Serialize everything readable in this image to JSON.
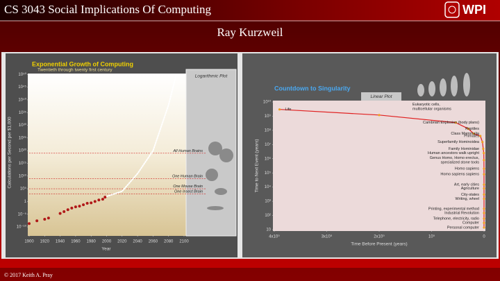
{
  "header": {
    "course": "CS 3043 Social Implications Of Computing",
    "logo": "WPI",
    "title": "Ray Kurzweil",
    "footer": "© 2017 Keith A. Pray"
  },
  "chart_data": [
    {
      "type": "scatter",
      "title": "Exponential Growth of Computing",
      "subtitle": "Twentieth through twenty first century",
      "panel_label": "Logarithmic Plot",
      "x_label": "Year",
      "y_label": "Calculations per Second per $1,000",
      "log_y": true,
      "grid": false,
      "xlim": [
        1900,
        2100
      ],
      "xticks": [
        1900,
        1920,
        1940,
        1960,
        1980,
        2000,
        2020,
        2040,
        2060,
        2080,
        2100
      ],
      "ylim": [
        1e-13,
        1e+52
      ],
      "yticks": [
        {
          "value": 1e+50,
          "label": "10⁵⁰"
        },
        {
          "value": 1e+45,
          "label": "10⁴⁵"
        },
        {
          "value": 1e+40,
          "label": "10⁴⁰"
        },
        {
          "value": 1e+35,
          "label": "10³⁵"
        },
        {
          "value": 1e+30,
          "label": "10³⁰"
        },
        {
          "value": 1e+25,
          "label": "10²⁵"
        },
        {
          "value": 1e+20,
          "label": "10²⁰"
        },
        {
          "value": 1000000000000000.0,
          "label": "10¹⁵"
        },
        {
          "value": 10000000000.0,
          "label": "10¹⁰"
        },
        {
          "value": 100000.0,
          "label": "10⁵"
        },
        1,
        {
          "value": 1e-05,
          "label": "10⁻⁵"
        },
        {
          "value": 1e-10,
          "label": "10⁻¹⁰"
        }
      ],
      "x": [
        1900,
        1910,
        1920,
        1925,
        1940,
        1945,
        1950,
        1955,
        1960,
        1965,
        1970,
        1975,
        1980,
        1985,
        1990,
        1995,
        1998
      ],
      "series": [
        {
          "color": "#b01818",
          "values": [
            2e-09,
            2.5e-08,
            1e-07,
            3e-07,
            2e-05,
            0.0001,
            0.0006,
            0.0025,
            0.008,
            0.015,
            0.05,
            0.2,
            0.3,
            1,
            4,
            8,
            50
          ]
        }
      ],
      "extrapolation": {
        "color": "#ffffff",
        "x": [
          2000,
          2020,
          2040,
          2060,
          2080,
          2090
        ],
        "values": [
          100,
          10000.0,
          100000000000.0,
          1e+20,
          1e+38,
          1e+50
        ]
      },
      "reference_lines": [
        {
          "label": "All Human Brains",
          "value": 1e+19,
          "color": "#d02020"
        },
        {
          "label": "One Human Brain",
          "value": 1000000000.0,
          "color": "#d02020"
        },
        {
          "label": "One Mouse Brain",
          "value": 100000.0,
          "color": "#d02020"
        },
        {
          "label": "One Insect Brain",
          "value": 1000.0,
          "color": "#d02020"
        }
      ]
    },
    {
      "type": "line",
      "title": "Countdown to Singularity",
      "panel_label": "Linear Plot",
      "x_label": "Time Before Present (years)",
      "y_label": "Time to Next Event (years)",
      "log_y": true,
      "grid": false,
      "xlim": [
        4000000000.0,
        0
      ],
      "xticks": [
        {
          "value": 4000000000.0,
          "label": "4x10⁹"
        },
        {
          "value": 3000000000.0,
          "label": "3x10⁹"
        },
        {
          "value": 2000000000.0,
          "label": "2x10⁹"
        },
        {
          "value": 1000000000.0,
          "label": "10⁹"
        },
        0
      ],
      "ylim": [
        10,
        10000000000.0
      ],
      "yticks": [
        {
          "value": 10000000000.0,
          "label": "10¹⁰"
        },
        {
          "value": 1000000000.0,
          "label": "10⁹"
        },
        {
          "value": 100000000.0,
          "label": "10⁸"
        },
        {
          "value": 10000000.0,
          "label": "10⁷"
        },
        {
          "value": 1000000.0,
          "label": "10⁶"
        },
        {
          "value": 100000.0,
          "label": "10⁵"
        },
        {
          "value": 10000.0,
          "label": "10⁴"
        },
        {
          "value": 1000.0,
          "label": "10³"
        },
        {
          "value": 100,
          "label": "10²"
        },
        10
      ],
      "x": [
        3900000000.0,
        2000000000.0,
        540000000.0,
        300000000.0,
        200000000.0,
        70000000.0,
        30000000.0,
        15000000.0,
        4000000.0,
        2000000.0,
        500000.0,
        100000.0,
        25000.0,
        12000.0,
        5000.0,
        4000.0,
        500,
        200,
        100,
        50,
        20
      ],
      "series": [
        {
          "color": "#e02020",
          "marker_color": "#f0a020",
          "values": [
            3000000000.0,
            1200000000.0,
            350000000.0,
            130000000.0,
            60000000.0,
            40000000.0,
            15000000.0,
            5000000.0,
            2500000.0,
            800000.0,
            200000.0,
            80000.0,
            15000.0,
            8000.0,
            3000.0,
            1500.0,
            300,
            150,
            60,
            30,
            14
          ]
        }
      ],
      "point_labels": [
        [
          "Life"
        ],
        [
          "Eukaryotic cells,",
          "multicellular organisms"
        ],
        [
          "Cambrian Explosion (body plans)"
        ],
        [
          "Reptiles"
        ],
        [
          "Class Mammalia"
        ],
        [
          "Primates"
        ],
        [
          "Superfamily Hominoidea"
        ],
        [
          "Family Hominidae"
        ],
        [
          "Human ancestors walk upright"
        ],
        [
          "Genus Homo, Homo erectus,",
          "specialized stone tools"
        ],
        [
          "Homo sapiens"
        ],
        [
          "Homo sapiens sapiens"
        ],
        [
          "Art, early cities"
        ],
        [
          "Agriculture"
        ],
        [
          "City-states"
        ],
        [
          "Writing, wheel"
        ],
        [
          "Printing, experimental method"
        ],
        [
          "Industrial Revolution"
        ],
        [
          "Telephone, electricity, radio"
        ],
        [
          "Computer"
        ],
        [
          "Personal computer"
        ]
      ]
    }
  ]
}
